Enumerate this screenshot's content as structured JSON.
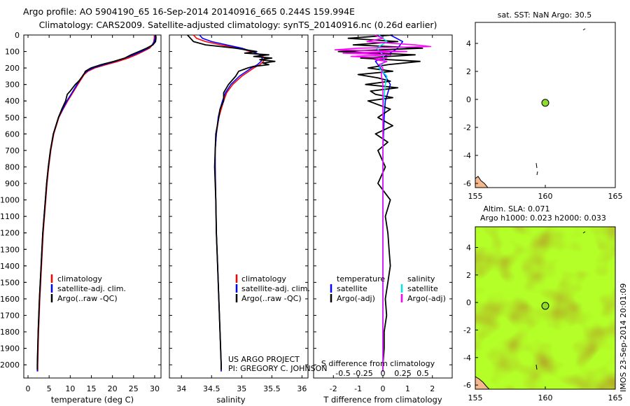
{
  "header": {
    "line1": "Argo profile: AO 5904190_65 16-Sep-2014 20140916_665 0.244S 159.994E",
    "line2": "Climatology: CARS2009. Satellite-adjusted climatology: synTS_20140916.nc (0.26d earlier)"
  },
  "credits": {
    "project": "US ARGO PROJECT",
    "pi": "PI: GREGORY C. JOHNSON"
  },
  "colors": {
    "climatology": "#ff0000",
    "satellite_clim": "#0000ff",
    "argo": "#000000",
    "sal_satellite": "#00e5e5",
    "sal_argo": "#ff00ff",
    "land": "#f5b78c",
    "argo_marker": "#8fdc2a"
  },
  "chart_data": [
    {
      "type": "line",
      "name": "temperature-profile",
      "xlabel": "temperature (deg C)",
      "ylabel": "",
      "xlim": [
        -1,
        31.5
      ],
      "ylim": [
        2080,
        0
      ],
      "xticks": [
        0,
        5,
        10,
        15,
        20,
        25,
        30
      ],
      "yticks": [
        0,
        100,
        200,
        300,
        400,
        500,
        600,
        700,
        800,
        900,
        1000,
        1100,
        1200,
        1300,
        1400,
        1500,
        1600,
        1700,
        1800,
        1900,
        2000
      ],
      "legend": [
        "climatology",
        "satellite-adj. clim.",
        "Argo(..raw -QC)"
      ],
      "series": [
        {
          "name": "climatology",
          "color": "#ff0000",
          "depth": [
            0,
            20,
            40,
            60,
            80,
            100,
            120,
            140,
            160,
            180,
            200,
            220,
            240,
            260,
            280,
            300,
            350,
            400,
            450,
            500,
            600,
            700,
            800,
            900,
            1000,
            1200,
            1400,
            1600,
            1800,
            2000,
            2040
          ],
          "values": [
            29.9,
            29.9,
            29.8,
            29.5,
            28.8,
            27.2,
            25.6,
            23.7,
            21.3,
            18.5,
            15.8,
            14.2,
            13.3,
            12.8,
            12.3,
            11.8,
            10.6,
            9.4,
            8.3,
            7.3,
            6.1,
            5.4,
            4.9,
            4.5,
            4.2,
            3.6,
            3.2,
            2.8,
            2.5,
            2.3,
            2.3
          ]
        },
        {
          "name": "satellite-adj. clim.",
          "color": "#0000ff",
          "depth": [
            0,
            20,
            40,
            60,
            80,
            100,
            120,
            140,
            160,
            180,
            200,
            220,
            240,
            260,
            280,
            300,
            350,
            400,
            450,
            500,
            600,
            700,
            800,
            900,
            1000,
            1200,
            1400,
            1600,
            1800,
            2000,
            2040
          ],
          "values": [
            30.1,
            30.1,
            29.9,
            29.4,
            28.5,
            26.8,
            25.0,
            23.0,
            20.6,
            17.9,
            15.4,
            13.9,
            13.1,
            12.6,
            12.1,
            11.6,
            10.4,
            9.2,
            8.2,
            7.2,
            6.0,
            5.3,
            4.8,
            4.4,
            4.1,
            3.5,
            3.1,
            2.7,
            2.4,
            2.2,
            2.2
          ]
        },
        {
          "name": "Argo(..raw -QC)",
          "color": "#000000",
          "depth": [
            0,
            10,
            20,
            40,
            60,
            80,
            100,
            120,
            140,
            160,
            180,
            200,
            220,
            240,
            260,
            280,
            300,
            340,
            360,
            400,
            450,
            500,
            600,
            700,
            800,
            900,
            1000,
            1200,
            1400,
            1600,
            1800,
            2000,
            2030
          ],
          "values": [
            30.2,
            30.3,
            30.3,
            30.2,
            29.6,
            28.1,
            26.3,
            24.4,
            22.9,
            20.3,
            17.3,
            14.9,
            13.6,
            13.2,
            12.6,
            12.0,
            11.2,
            10.0,
            9.3,
            8.9,
            8.0,
            7.2,
            6.0,
            5.3,
            4.8,
            4.4,
            4.1,
            3.5,
            3.1,
            2.7,
            2.4,
            2.2,
            2.2
          ]
        }
      ]
    },
    {
      "type": "line",
      "name": "salinity-profile",
      "xlabel": "salinity",
      "xlim": [
        33.8,
        36.1
      ],
      "ylim": [
        2080,
        0
      ],
      "xticks": [
        34,
        34.5,
        35,
        35.5,
        36
      ],
      "xticklabels": [
        "34",
        "34.5",
        "35",
        "35.5",
        "36"
      ],
      "legend": [
        "climatology",
        "satellite-adj. clim.",
        "Argo(..raw -QC)"
      ],
      "series": [
        {
          "name": "climatology",
          "color": "#ff0000",
          "depth": [
            0,
            20,
            40,
            60,
            80,
            100,
            120,
            140,
            160,
            180,
            200,
            250,
            300,
            350,
            400,
            450,
            500,
            600,
            700,
            800,
            1000,
            1200,
            1400,
            1600,
            1800,
            2000,
            2040
          ],
          "values": [
            34.2,
            34.25,
            34.4,
            34.65,
            34.95,
            35.15,
            35.32,
            35.38,
            35.36,
            35.3,
            35.2,
            35.0,
            34.85,
            34.75,
            34.7,
            34.66,
            34.62,
            34.58,
            34.56,
            34.56,
            34.57,
            34.58,
            34.6,
            34.62,
            34.64,
            34.66,
            34.66
          ]
        },
        {
          "name": "satellite-adj. clim.",
          "color": "#0000ff",
          "depth": [
            0,
            20,
            40,
            60,
            80,
            100,
            120,
            140,
            160,
            180,
            200,
            250,
            300,
            350,
            400,
            450,
            500,
            600,
            700,
            800,
            1000,
            1200,
            1400,
            1600,
            1800,
            2000,
            2040
          ],
          "values": [
            34.3,
            34.35,
            34.5,
            34.75,
            35.0,
            35.18,
            35.3,
            35.34,
            35.32,
            35.26,
            35.16,
            34.96,
            34.82,
            34.73,
            34.68,
            34.64,
            34.61,
            34.58,
            34.56,
            34.56,
            34.57,
            34.58,
            34.6,
            34.62,
            34.64,
            34.66,
            34.66
          ]
        },
        {
          "name": "Argo(..raw -QC)",
          "color": "#000000",
          "depth": [
            0,
            20,
            40,
            60,
            80,
            100,
            110,
            120,
            130,
            140,
            150,
            160,
            170,
            180,
            190,
            200,
            220,
            250,
            300,
            350,
            400,
            450,
            500,
            600,
            700,
            800,
            1000,
            1200,
            1400,
            1600,
            1800,
            2000,
            2030
          ],
          "values": [
            34.1,
            34.15,
            34.2,
            34.4,
            34.9,
            35.25,
            35.05,
            35.45,
            35.2,
            35.5,
            35.3,
            35.55,
            35.35,
            35.45,
            35.2,
            35.1,
            34.95,
            34.9,
            34.78,
            34.7,
            34.7,
            34.64,
            34.62,
            34.57,
            34.56,
            34.55,
            34.57,
            34.58,
            34.6,
            34.62,
            34.64,
            34.66,
            34.66
          ]
        }
      ]
    },
    {
      "type": "line",
      "name": "difference-profile",
      "xlabel": "T difference from climatology",
      "xlabel_top": "S difference from climatology",
      "xlim": [
        -2.8,
        2.8
      ],
      "ylim": [
        2080,
        0
      ],
      "xticks": [
        -2,
        -1,
        0,
        1,
        2
      ],
      "xticks_top": [
        -0.5,
        -0.25,
        0,
        0.25,
        0.5
      ],
      "xticklabels_top": [
        "-0.5",
        "-0.25",
        "0",
        "0.25",
        "0.5"
      ],
      "legend": {
        "temperature": [
          "satellite",
          "Argo(-adj)"
        ],
        "salinity": [
          "satellite",
          "Argo(-adj)"
        ]
      },
      "legend_titles": [
        "temperature",
        "salinity"
      ],
      "series": [
        {
          "name": "T satellite",
          "color": "#0000ff",
          "axis": "T",
          "depth": [
            0,
            40,
            80,
            120,
            160,
            200,
            250,
            300,
            400,
            500,
            700,
            1000,
            1500,
            2000,
            2040
          ],
          "values": [
            0.3,
            0.8,
            0.6,
            0.2,
            -0.3,
            -0.1,
            0.1,
            0.3,
            0.1,
            0.05,
            0.0,
            0.0,
            0.0,
            0.0,
            0.0
          ]
        },
        {
          "name": "T Argo(-adj)",
          "color": "#000000",
          "axis": "T",
          "depth": [
            0,
            20,
            40,
            60,
            80,
            100,
            120,
            140,
            160,
            180,
            200,
            220,
            240,
            260,
            280,
            300,
            320,
            340,
            360,
            380,
            400,
            450,
            500,
            550,
            600,
            650,
            700,
            800,
            900,
            1000,
            1100,
            1200,
            1300,
            1400,
            1500,
            1600,
            1700,
            1800,
            1900,
            2000,
            2030
          ],
          "values": [
            0.4,
            -1.4,
            0.6,
            -1.2,
            1.6,
            -1.8,
            1.3,
            -0.9,
            1.5,
            0.2,
            -0.6,
            0.4,
            -1.0,
            -0.2,
            0.3,
            -0.7,
            0.6,
            -0.5,
            -0.3,
            0.4,
            -0.6,
            0.3,
            -0.2,
            0.4,
            -0.3,
            0.2,
            -0.2,
            0.1,
            -0.2,
            0.3,
            0.1,
            0.2,
            0.25,
            0.3,
            0.2,
            0.1,
            0.15,
            0.05,
            0.05,
            0.0,
            0.0
          ]
        },
        {
          "name": "S satellite",
          "color": "#00e5e5",
          "axis": "S",
          "depth": [
            0,
            40,
            80,
            120,
            160,
            200,
            250,
            300,
            400,
            500,
            700,
            1000,
            1500,
            2000,
            2040
          ],
          "values": [
            -0.05,
            0.05,
            -0.08,
            0.0,
            0.02,
            -0.05,
            0.05,
            0.03,
            0.01,
            0.0,
            0.0,
            0.0,
            0.0,
            0.0,
            0.0
          ]
        },
        {
          "name": "S Argo(-adj)",
          "color": "#ff00ff",
          "axis": "S",
          "depth": [
            0,
            20,
            40,
            60,
            70,
            80,
            90,
            100,
            110,
            120,
            130,
            140,
            150,
            160,
            180,
            200,
            240,
            300,
            400,
            500,
            800,
            1200,
            1600,
            2000,
            2040
          ],
          "values": [
            -0.1,
            0.0,
            -0.2,
            0.4,
            0.6,
            -0.3,
            -0.6,
            0.3,
            -0.5,
            0.1,
            -0.4,
            0.05,
            -0.1,
            0.05,
            -0.05,
            0.0,
            -0.02,
            0.0,
            0.0,
            0.0,
            0.0,
            0.0,
            0.0,
            0.0,
            0.0
          ]
        }
      ]
    },
    {
      "type": "heatmap",
      "name": "sst-map",
      "title": "sat. SST: NaN Argo: 30.5",
      "xlim": [
        155,
        165
      ],
      "ylim": [
        -6.3,
        5.5
      ],
      "xticks": [
        155,
        160,
        165
      ],
      "yticks": [
        4,
        2,
        0,
        -2,
        -4,
        -6
      ],
      "marker": {
        "lon": 160,
        "lat": -0.244
      }
    },
    {
      "type": "heatmap",
      "name": "sla-map",
      "title_line1": "Altim. SLA: 0.071",
      "title_line2": "Argo h1000: 0.023 h2000: 0.033",
      "xlim": [
        155,
        165
      ],
      "ylim": [
        -6.3,
        5.5
      ],
      "xticks": [
        155,
        160,
        165
      ],
      "yticks": [
        4,
        2,
        0,
        -2,
        -4,
        -6
      ],
      "marker": {
        "lon": 160,
        "lat": -0.244
      },
      "side_label": "IMOS 23-Sep-2014 20:01:09"
    }
  ]
}
